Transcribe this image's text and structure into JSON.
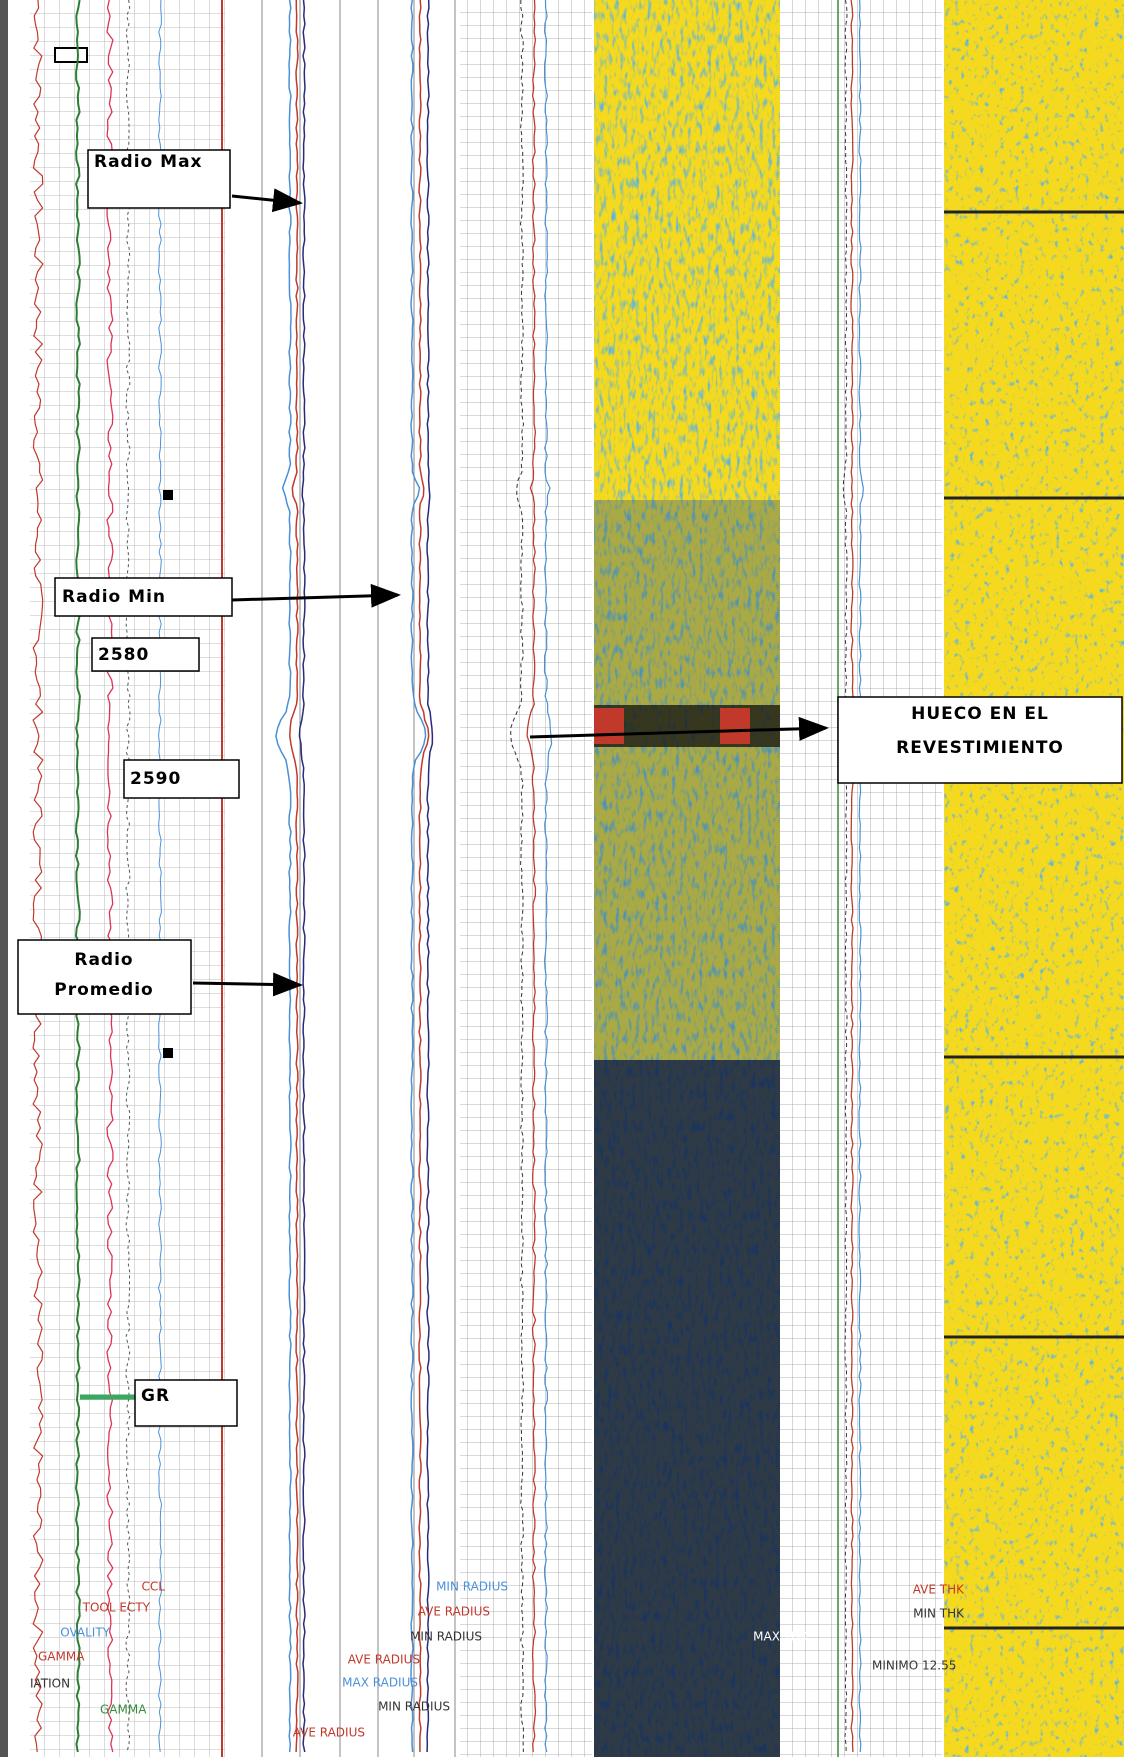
{
  "annotations": {
    "radio_max": "Radio Max",
    "radio_min": "Radio Min",
    "depth_2580": 2580,
    "depth_2590": 2590,
    "radio_promedio": [
      "Radio",
      "Promedio"
    ],
    "gr": "GR",
    "hueco": [
      "HUECO EN EL",
      "REVESTIMIENTO"
    ]
  },
  "curve_labels": [
    "CCL",
    "TOOL ECTY",
    "OVALITY",
    "GAMMA",
    "IATION",
    "GAMMA",
    "MIN RADIUS",
    "AVE RADIUS",
    "MIN RADIUS",
    "AVE RADIUS",
    "MAX RADIUS",
    "MIN RADIUS",
    "AVE RADIUS",
    "AVE THK",
    "MIN THK",
    "MAX THK",
    "MINIMO 12.55"
  ]
}
